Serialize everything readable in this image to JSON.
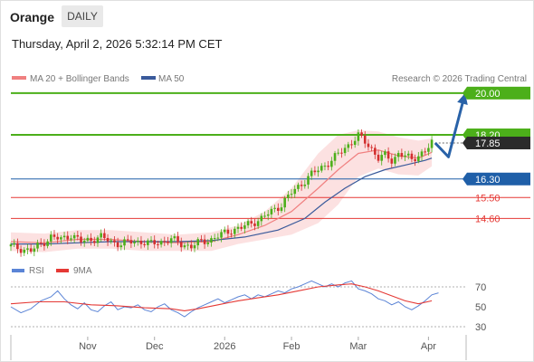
{
  "header": {
    "symbol": "Orange",
    "period": "DAILY",
    "timestamp": "Thursday, April 2, 2026 5:32:14 PM CET"
  },
  "legend": {
    "ma20_label": "MA 20 + Bollinger Bands",
    "ma50_label": "MA 50",
    "copyright": "Research © 2026 Trading Central"
  },
  "colors": {
    "ma20": "#f08080",
    "bollinger_fill": "#fbdcdc",
    "ma50": "#3a5a9b",
    "resistance": "#4caf1a",
    "support": "#1f5fa8",
    "red_level": "#e53935",
    "up_candle": "#4caf1a",
    "down_candle": "#d32f2f",
    "current": "#2b2b2b",
    "rsi": "#5b84d6",
    "rsi_ma": "#e53935",
    "forecast_arrow": "#2962a8"
  },
  "chart_data": [
    {
      "type": "candlestick",
      "title": "Orange",
      "period": "DAILY",
      "x_ticks": [
        "Nov",
        "Dec",
        "2026",
        "Feb",
        "Mar",
        "Apr"
      ],
      "y_range": [
        12.9,
        20.5
      ],
      "levels": [
        {
          "value": 20.0,
          "label": "20.00",
          "kind": "resistance"
        },
        {
          "value": 18.2,
          "label": "18.20",
          "kind": "resistance"
        },
        {
          "value": 17.85,
          "label": "17.85",
          "kind": "current"
        },
        {
          "value": 16.3,
          "label": "16.30",
          "kind": "support"
        },
        {
          "value": 15.5,
          "label": "15.50",
          "kind": "support_red"
        },
        {
          "value": 14.6,
          "label": "14.60",
          "kind": "support_red"
        }
      ],
      "series": [
        {
          "name": "MA 20 + Bollinger Bands"
        },
        {
          "name": "MA 50"
        }
      ],
      "close_path": [
        [
          0,
          13.4
        ],
        [
          3,
          13.3
        ],
        [
          6,
          13.2
        ],
        [
          9,
          13.5
        ],
        [
          12,
          13.8
        ],
        [
          15,
          13.7
        ],
        [
          18,
          13.9
        ],
        [
          21,
          13.6
        ],
        [
          24,
          13.7
        ],
        [
          27,
          13.8
        ],
        [
          30,
          13.6
        ],
        [
          33,
          13.5
        ],
        [
          36,
          13.6
        ],
        [
          39,
          13.6
        ],
        [
          42,
          13.5
        ],
        [
          45,
          13.6
        ],
        [
          48,
          13.7
        ],
        [
          51,
          13.5
        ],
        [
          54,
          13.4
        ],
        [
          57,
          13.6
        ],
        [
          60,
          13.7
        ],
        [
          63,
          13.9
        ],
        [
          66,
          14.1
        ],
        [
          69,
          14.2
        ],
        [
          72,
          14.4
        ],
        [
          75,
          14.6
        ],
        [
          78,
          14.9
        ],
        [
          81,
          15.2
        ],
        [
          84,
          15.7
        ],
        [
          87,
          16.1
        ],
        [
          90,
          16.5
        ],
        [
          93,
          16.8
        ],
        [
          96,
          17.1
        ],
        [
          99,
          17.5
        ],
        [
          102,
          17.9
        ],
        [
          104,
          18.15
        ],
        [
          106,
          17.9
        ],
        [
          108,
          17.6
        ],
        [
          110,
          17.2
        ],
        [
          112,
          17.3
        ],
        [
          114,
          17.1
        ],
        [
          116,
          17.4
        ],
        [
          118,
          17.3
        ],
        [
          120,
          17.1
        ],
        [
          122,
          17.35
        ],
        [
          124,
          17.5
        ],
        [
          126,
          17.85
        ]
      ],
      "ma20_path": [
        [
          0,
          13.6
        ],
        [
          10,
          13.55
        ],
        [
          20,
          13.7
        ],
        [
          30,
          13.7
        ],
        [
          40,
          13.6
        ],
        [
          50,
          13.55
        ],
        [
          60,
          13.6
        ],
        [
          68,
          13.9
        ],
        [
          76,
          14.3
        ],
        [
          84,
          14.9
        ],
        [
          92,
          15.9
        ],
        [
          98,
          16.7
        ],
        [
          104,
          17.4
        ],
        [
          110,
          17.55
        ],
        [
          116,
          17.3
        ],
        [
          122,
          17.2
        ],
        [
          126,
          17.45
        ]
      ],
      "ma50_path": [
        [
          0,
          13.5
        ],
        [
          10,
          13.5
        ],
        [
          20,
          13.55
        ],
        [
          30,
          13.6
        ],
        [
          40,
          13.6
        ],
        [
          50,
          13.6
        ],
        [
          60,
          13.65
        ],
        [
          70,
          13.8
        ],
        [
          80,
          14.1
        ],
        [
          88,
          14.6
        ],
        [
          94,
          15.3
        ],
        [
          100,
          15.9
        ],
        [
          106,
          16.4
        ],
        [
          112,
          16.7
        ],
        [
          118,
          16.9
        ],
        [
          124,
          17.1
        ],
        [
          126,
          17.2
        ]
      ],
      "bollinger_upper": [
        [
          0,
          14.0
        ],
        [
          10,
          13.95
        ],
        [
          20,
          14.1
        ],
        [
          30,
          14.1
        ],
        [
          40,
          14.0
        ],
        [
          50,
          13.9
        ],
        [
          60,
          14.0
        ],
        [
          68,
          14.3
        ],
        [
          76,
          14.9
        ],
        [
          84,
          15.9
        ],
        [
          92,
          17.4
        ],
        [
          98,
          18.2
        ],
        [
          104,
          18.4
        ],
        [
          110,
          18.35
        ],
        [
          116,
          18.1
        ],
        [
          122,
          17.95
        ],
        [
          126,
          18.05
        ]
      ],
      "bollinger_lower": [
        [
          0,
          13.2
        ],
        [
          10,
          13.15
        ],
        [
          20,
          13.3
        ],
        [
          30,
          13.3
        ],
        [
          40,
          13.2
        ],
        [
          50,
          13.2
        ],
        [
          60,
          13.2
        ],
        [
          68,
          13.5
        ],
        [
          76,
          13.7
        ],
        [
          84,
          13.9
        ],
        [
          92,
          14.4
        ],
        [
          98,
          15.2
        ],
        [
          104,
          16.4
        ],
        [
          110,
          16.75
        ],
        [
          116,
          16.5
        ],
        [
          122,
          16.45
        ],
        [
          126,
          16.85
        ]
      ],
      "forecast_path": [
        [
          127,
          17.85
        ],
        [
          131,
          17.25
        ],
        [
          136,
          20.0
        ]
      ]
    },
    {
      "type": "line",
      "series": [
        {
          "name": "RSI"
        },
        {
          "name": "9MA"
        }
      ],
      "y_ticks": [
        70,
        50,
        30
      ],
      "y_range": [
        20,
        80
      ],
      "overbought": 70,
      "oversold": 30,
      "rsi_path": [
        [
          0,
          50
        ],
        [
          3,
          44
        ],
        [
          6,
          48
        ],
        [
          9,
          56
        ],
        [
          12,
          60
        ],
        [
          14,
          66
        ],
        [
          16,
          58
        ],
        [
          18,
          52
        ],
        [
          20,
          48
        ],
        [
          22,
          54
        ],
        [
          24,
          47
        ],
        [
          26,
          45
        ],
        [
          28,
          51
        ],
        [
          30,
          55
        ],
        [
          32,
          47
        ],
        [
          34,
          50
        ],
        [
          36,
          49
        ],
        [
          38,
          52
        ],
        [
          40,
          47
        ],
        [
          42,
          45
        ],
        [
          44,
          50
        ],
        [
          46,
          53
        ],
        [
          48,
          47
        ],
        [
          50,
          44
        ],
        [
          52,
          40
        ],
        [
          54,
          45
        ],
        [
          56,
          49
        ],
        [
          58,
          52
        ],
        [
          60,
          55
        ],
        [
          62,
          58
        ],
        [
          64,
          54
        ],
        [
          66,
          57
        ],
        [
          68,
          60
        ],
        [
          70,
          62
        ],
        [
          72,
          58
        ],
        [
          74,
          62
        ],
        [
          76,
          60
        ],
        [
          78,
          63
        ],
        [
          80,
          66
        ],
        [
          82,
          64
        ],
        [
          84,
          68
        ],
        [
          86,
          70
        ],
        [
          88,
          73
        ],
        [
          90,
          76
        ],
        [
          92,
          73
        ],
        [
          94,
          70
        ],
        [
          96,
          73
        ],
        [
          98,
          70
        ],
        [
          100,
          74
        ],
        [
          102,
          76
        ],
        [
          104,
          68
        ],
        [
          106,
          66
        ],
        [
          108,
          63
        ],
        [
          110,
          58
        ],
        [
          112,
          56
        ],
        [
          114,
          52
        ],
        [
          116,
          55
        ],
        [
          118,
          50
        ],
        [
          120,
          47
        ],
        [
          122,
          51
        ],
        [
          124,
          56
        ],
        [
          126,
          62
        ],
        [
          128,
          64
        ]
      ],
      "rsi_ma_path": [
        [
          0,
          53
        ],
        [
          8,
          55
        ],
        [
          16,
          55
        ],
        [
          24,
          52
        ],
        [
          32,
          51
        ],
        [
          40,
          49
        ],
        [
          48,
          48
        ],
        [
          52,
          46
        ],
        [
          56,
          48
        ],
        [
          62,
          52
        ],
        [
          68,
          56
        ],
        [
          74,
          59
        ],
        [
          80,
          62
        ],
        [
          86,
          66
        ],
        [
          92,
          70
        ],
        [
          98,
          72
        ],
        [
          102,
          73
        ],
        [
          106,
          70
        ],
        [
          110,
          66
        ],
        [
          114,
          61
        ],
        [
          118,
          56
        ],
        [
          122,
          53
        ],
        [
          126,
          56
        ]
      ]
    }
  ]
}
